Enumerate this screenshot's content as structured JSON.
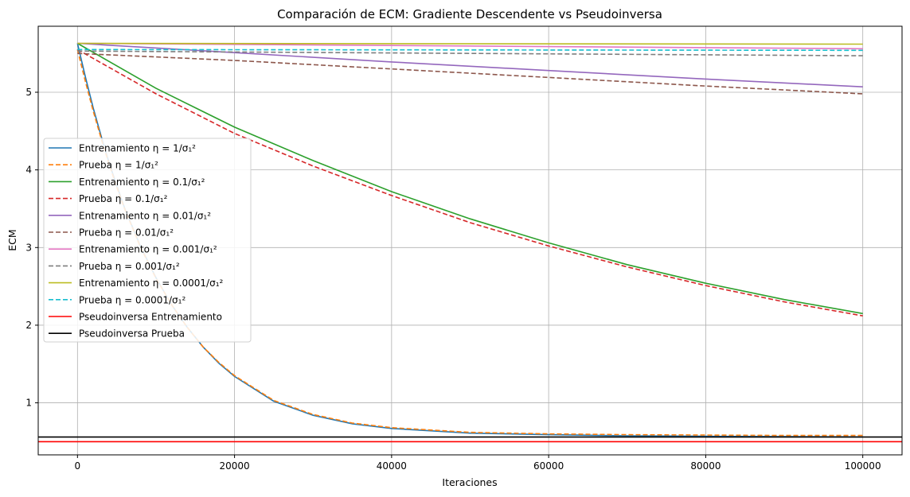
{
  "chart_data": {
    "type": "line",
    "title": "Comparación de ECM: Gradiente Descendente vs Pseudoinversa",
    "xlabel": "Iteraciones",
    "ylabel": "ECM",
    "xlim": [
      -5000,
      105000
    ],
    "ylim": [
      0.33,
      5.85
    ],
    "xticks": [
      0,
      20000,
      40000,
      60000,
      80000,
      100000
    ],
    "yticks": [
      1,
      2,
      3,
      4,
      5
    ],
    "grid": true,
    "legend_position": "center-left",
    "series": [
      {
        "name": "Entrenamiento η = 1/σ₁²",
        "color": "#1f77b4",
        "style": "solid",
        "x": [
          0,
          1000,
          2000,
          3000,
          4000,
          5000,
          6000,
          8000,
          10000,
          12000,
          14000,
          16000,
          18000,
          20000,
          25000,
          30000,
          35000,
          40000,
          50000,
          60000,
          70000,
          80000,
          90000,
          100000
        ],
        "y": [
          5.63,
          5.2,
          4.8,
          4.44,
          4.1,
          3.8,
          3.51,
          3.02,
          2.61,
          2.26,
          1.97,
          1.72,
          1.51,
          1.34,
          1.02,
          0.84,
          0.73,
          0.67,
          0.61,
          0.59,
          0.575,
          0.57,
          0.565,
          0.56
        ]
      },
      {
        "name": "Prueba η = 1/σ₁²",
        "color": "#ff7f0e",
        "style": "dashed",
        "x": [
          0,
          1000,
          2000,
          3000,
          4000,
          5000,
          6000,
          8000,
          10000,
          12000,
          14000,
          16000,
          18000,
          20000,
          25000,
          30000,
          35000,
          40000,
          50000,
          60000,
          70000,
          80000,
          90000,
          100000
        ],
        "y": [
          5.55,
          5.14,
          4.76,
          4.41,
          4.08,
          3.78,
          3.5,
          3.01,
          2.6,
          2.26,
          1.97,
          1.72,
          1.52,
          1.35,
          1.03,
          0.85,
          0.74,
          0.68,
          0.62,
          0.6,
          0.59,
          0.585,
          0.58,
          0.58
        ]
      },
      {
        "name": "Entrenamiento η = 0.1/σ₁²",
        "color": "#2ca02c",
        "style": "solid",
        "x": [
          0,
          10000,
          20000,
          30000,
          40000,
          50000,
          60000,
          70000,
          80000,
          90000,
          100000
        ],
        "y": [
          5.63,
          5.05,
          4.55,
          4.12,
          3.72,
          3.37,
          3.06,
          2.78,
          2.54,
          2.33,
          2.15
        ]
      },
      {
        "name": "Prueba η = 0.1/σ₁²",
        "color": "#d62728",
        "style": "dashed",
        "x": [
          0,
          10000,
          20000,
          30000,
          40000,
          50000,
          60000,
          70000,
          80000,
          90000,
          100000
        ],
        "y": [
          5.55,
          4.98,
          4.47,
          4.05,
          3.67,
          3.32,
          3.02,
          2.75,
          2.51,
          2.3,
          2.12
        ]
      },
      {
        "name": "Entrenamiento η = 0.01/σ₁²",
        "color": "#9467bd",
        "style": "solid",
        "x": [
          0,
          20000,
          40000,
          60000,
          80000,
          100000
        ],
        "y": [
          5.63,
          5.51,
          5.39,
          5.28,
          5.17,
          5.07
        ]
      },
      {
        "name": "Prueba η = 0.01/σ₁²",
        "color": "#8c564b",
        "style": "dashed",
        "x": [
          0,
          20000,
          40000,
          60000,
          80000,
          100000
        ],
        "y": [
          5.5,
          5.41,
          5.3,
          5.19,
          5.08,
          4.98
        ]
      },
      {
        "name": "Entrenamiento η = 0.001/σ₁²",
        "color": "#e377c2",
        "style": "solid",
        "x": [
          0,
          100000
        ],
        "y": [
          5.63,
          5.56
        ]
      },
      {
        "name": "Prueba η = 0.001/σ₁²",
        "color": "#7f7f7f",
        "style": "dashed",
        "x": [
          0,
          100000
        ],
        "y": [
          5.53,
          5.47
        ]
      },
      {
        "name": "Entrenamiento η = 0.0001/σ₁²",
        "color": "#bcbd22",
        "style": "solid",
        "x": [
          0,
          100000
        ],
        "y": [
          5.63,
          5.62
        ]
      },
      {
        "name": "Prueba η = 0.0001/σ₁²",
        "color": "#17becf",
        "style": "dashed",
        "x": [
          0,
          100000
        ],
        "y": [
          5.55,
          5.54
        ]
      },
      {
        "name": "Pseudoinversa Entrenamiento",
        "color": "#ff0000",
        "style": "hline",
        "y": 0.5
      },
      {
        "name": "Pseudoinversa Prueba",
        "color": "#000000",
        "style": "hline",
        "y": 0.56
      }
    ]
  }
}
